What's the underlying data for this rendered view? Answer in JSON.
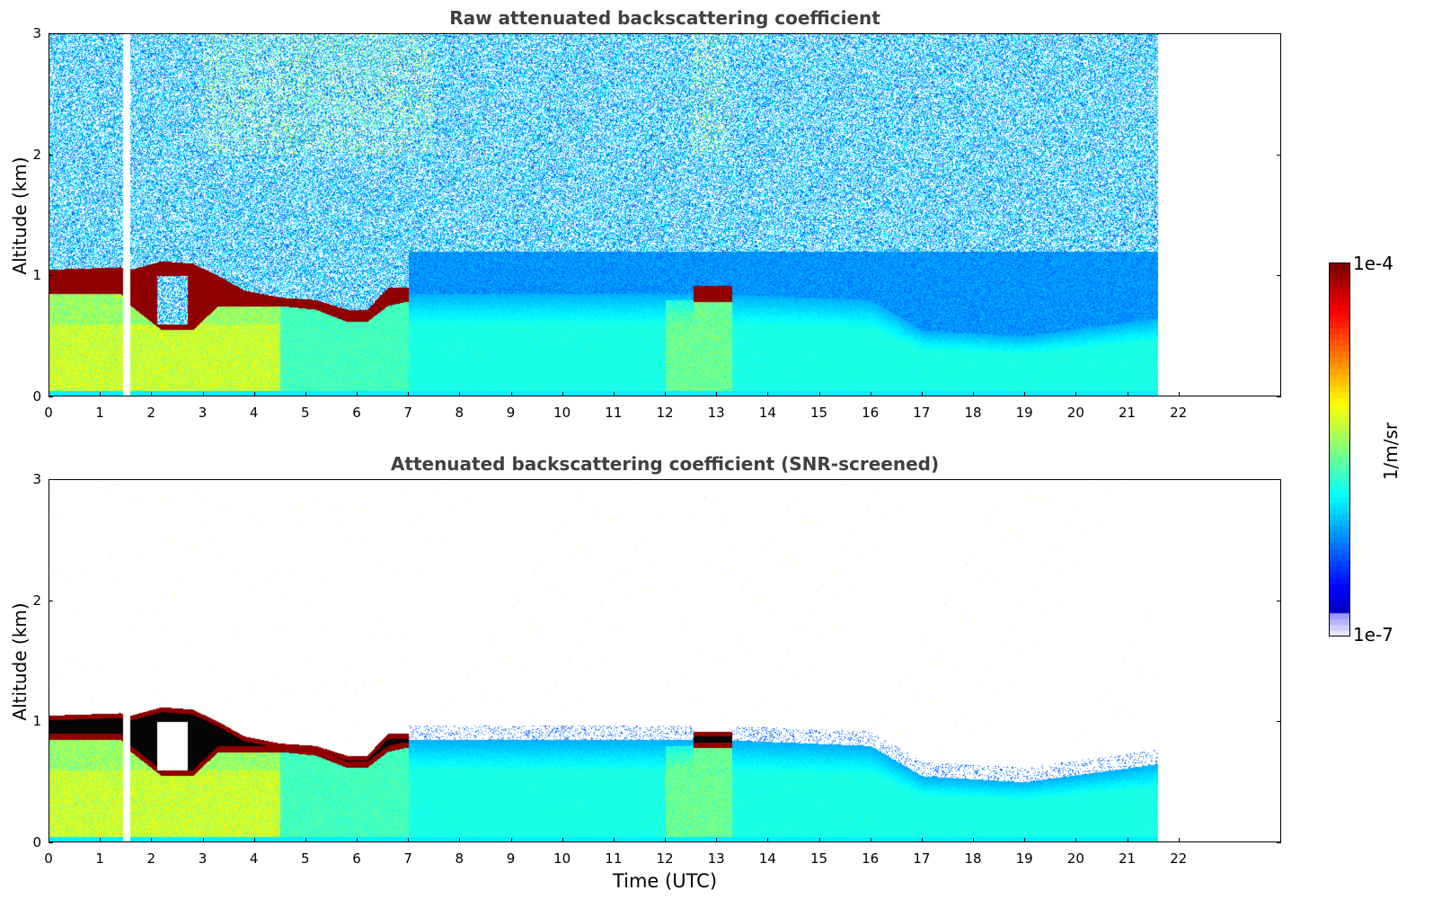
{
  "chart_data": [
    {
      "type": "heatmap",
      "title": "Raw attenuated backscattering coefficient",
      "xlabel": "",
      "ylabel": "Altitude (km)",
      "xlim": [
        0,
        24
      ],
      "ylim": [
        0,
        3
      ],
      "x_ticks": [
        0,
        1,
        2,
        3,
        4,
        5,
        6,
        7,
        8,
        9,
        10,
        11,
        12,
        13,
        14,
        15,
        16,
        17,
        18,
        19,
        20,
        21,
        22
      ],
      "y_ticks": [
        0,
        1,
        2,
        3
      ],
      "data_end_time": 21.6,
      "gap_interval": [
        1.45,
        1.58
      ],
      "cloud_layer_base_km": [
        0.85,
        0.55,
        0.6,
        0.75,
        0.7,
        0.6,
        0.75
      ],
      "cloud_layer_top_km": [
        1.05,
        1.1,
        1.1,
        0.85,
        0.85,
        0.75,
        0.9
      ],
      "cloud_layer_times": [
        0.5,
        2.5,
        3.5,
        4.5,
        5.5,
        6.2,
        6.8
      ],
      "noise_above_km": 1.0,
      "screened": false
    },
    {
      "type": "heatmap",
      "title": "Attenuated backscattering coefficient (SNR-screened)",
      "xlabel": "Time (UTC)",
      "ylabel": "Altitude (km)",
      "xlim": [
        0,
        24
      ],
      "ylim": [
        0,
        3
      ],
      "x_ticks": [
        0,
        1,
        2,
        3,
        4,
        5,
        6,
        7,
        8,
        9,
        10,
        11,
        12,
        13,
        14,
        15,
        16,
        17,
        18,
        19,
        20,
        21,
        22
      ],
      "y_ticks": [
        0,
        1,
        2,
        3
      ],
      "data_end_time": 21.6,
      "gap_interval": [
        1.45,
        1.58
      ],
      "screened": true
    }
  ],
  "colorbar": {
    "max_label": "1e-4",
    "min_label": "1e-7",
    "unit": "1/m/sr",
    "colormap": "jet",
    "scale": "log"
  }
}
